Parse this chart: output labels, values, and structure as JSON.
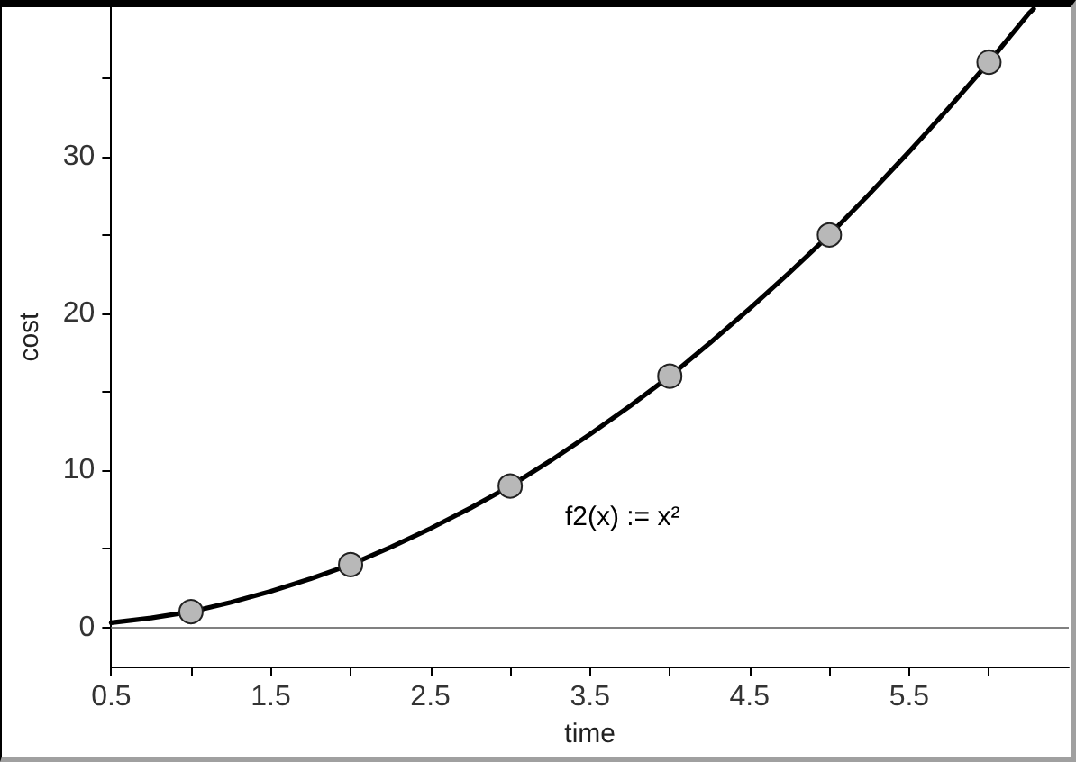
{
  "chart_data": {
    "type": "scatter",
    "xlabel": "time",
    "ylabel": "cost",
    "xlim": [
      0.5,
      6.5
    ],
    "xticks": [
      0.5,
      {
        "value": 1,
        "label": null
      },
      1.5,
      {
        "value": 2,
        "label": null
      },
      2.5,
      {
        "value": 3,
        "label": null
      },
      3.5,
      {
        "value": 4,
        "label": null
      },
      4.5,
      {
        "value": 5,
        "label": null
      },
      5.5,
      {
        "value": 6,
        "label": null
      }
    ],
    "ylim": [
      -2.5,
      39.5
    ],
    "yticks": [
      0,
      {
        "value": 5,
        "label": null
      },
      10,
      {
        "value": 15,
        "label": null
      },
      20,
      {
        "value": 25,
        "label": null
      },
      30,
      {
        "value": 35,
        "label": null
      }
    ],
    "grid": false,
    "ref_lines": [
      {
        "axis": "y",
        "value": 0,
        "color": "#808080"
      }
    ],
    "series": [
      {
        "type": "line",
        "name": "f2(x) := x²",
        "color": "#000000",
        "marker": "none",
        "line_style": "solid",
        "x": [
          0.5,
          0.75,
          1,
          1.25,
          1.5,
          1.75,
          2,
          2.25,
          2.5,
          2.75,
          3,
          3.25,
          3.5,
          3.75,
          4,
          4.25,
          4.5,
          4.75,
          5,
          5.25,
          5.5,
          5.75,
          6,
          6.25,
          6.28
        ],
        "values": [
          0.3,
          0.6,
          1,
          1.6,
          2.3,
          3.1,
          4,
          5.1,
          6.3,
          7.6,
          9,
          10.6,
          12.3,
          14.1,
          16,
          18.1,
          20.3,
          22.6,
          25,
          27.6,
          30.3,
          33.1,
          36,
          39.1,
          39.4
        ]
      },
      {
        "type": "scatter",
        "color": "#b8b8b8",
        "marker": "circle",
        "x": [
          1,
          2,
          3,
          4,
          5,
          6
        ],
        "values": [
          1,
          4,
          9,
          16,
          25,
          36
        ]
      }
    ]
  }
}
